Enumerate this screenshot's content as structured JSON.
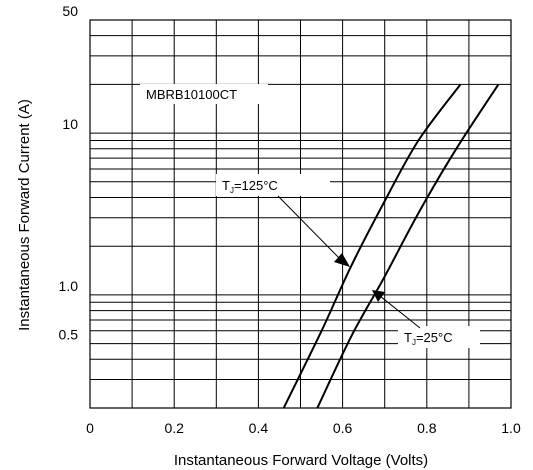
{
  "chart_data": {
    "type": "line",
    "title": "",
    "xlabel": "Instantaneous Forward Voltage (Volts)",
    "ylabel": "Instantaneous Forward Current (A)",
    "xlim": [
      0,
      1.0
    ],
    "ylim": [
      0.2,
      50
    ],
    "y_scale": "log",
    "grid": true,
    "x_ticks": [
      0,
      0.2,
      0.4,
      0.6,
      0.8,
      1.0
    ],
    "x_tick_labels": [
      "0",
      "0.2",
      "0.4",
      "0.6",
      "0.8",
      "1.0"
    ],
    "y_ticks": [
      0.5,
      1.0,
      10,
      50
    ],
    "y_tick_labels": [
      "0.5",
      "1.0",
      "10",
      "50"
    ],
    "series": [
      {
        "x": [
          0.46,
          0.55,
          0.62,
          0.7,
          0.78,
          0.88
        ],
        "y": [
          0.2,
          0.6,
          1.5,
          3.8,
          9,
          20
        ]
      },
      {
        "x": [
          0.54,
          0.62,
          0.7,
          0.78,
          0.87,
          0.97
        ],
        "y": [
          0.2,
          0.55,
          1.3,
          3.2,
          8,
          20
        ]
      }
    ],
    "annotations": {
      "part": "MBRB10100CT",
      "hot": {
        "prefix": "T",
        "sub": "J",
        "rest": "=125°C"
      },
      "cold": {
        "prefix": "T",
        "sub": "J",
        "rest": "=25°C"
      }
    }
  }
}
